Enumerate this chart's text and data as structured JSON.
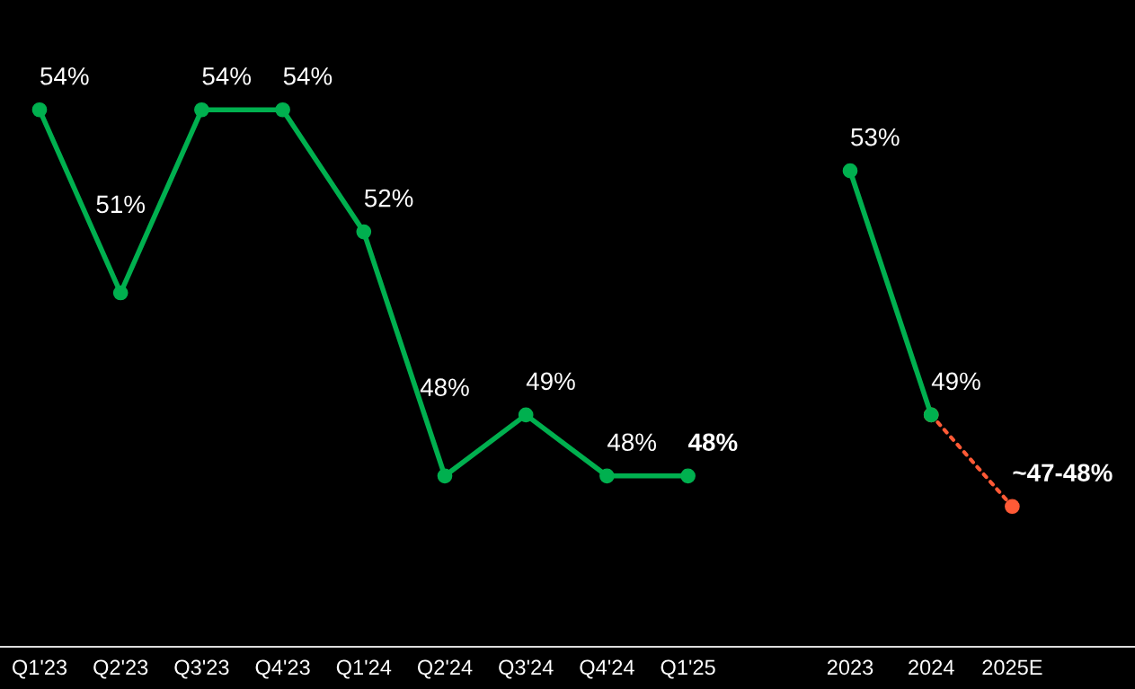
{
  "chart_data": {
    "type": "line",
    "ylim": [
      45.2,
      55.8
    ],
    "categories": [
      "Q1'23",
      "Q2'23",
      "Q3'23",
      "Q4'23",
      "Q1'24",
      "Q2'24",
      "Q3'24",
      "Q4'24",
      "Q1'25",
      null,
      "2023",
      "2024",
      "2025E"
    ],
    "series": [
      {
        "color": "#00b04f",
        "marker": "circle",
        "line_style": "solid",
        "values": [
          54,
          51,
          54,
          54,
          52,
          48,
          49,
          48,
          48,
          null,
          null,
          null,
          null
        ],
        "value_labels": [
          "54%",
          "51%",
          "54%",
          "54%",
          "52%",
          "48%",
          "49%",
          "48%",
          "48%",
          null,
          null,
          null,
          null
        ]
      },
      {
        "color": "#ff5a36",
        "marker": "circle",
        "line_style": "dotted",
        "values": [
          null,
          null,
          null,
          null,
          null,
          null,
          null,
          null,
          null,
          null,
          null,
          49,
          47.5
        ],
        "value_labels": [
          null,
          null,
          null,
          null,
          null,
          null,
          null,
          null,
          null,
          null,
          null,
          null,
          "~47-48%"
        ]
      },
      {
        "color": "#00b04f",
        "marker": "circle",
        "line_style": "solid",
        "values": [
          null,
          null,
          null,
          null,
          null,
          null,
          null,
          null,
          null,
          null,
          53,
          49,
          null
        ],
        "value_labels": [
          null,
          null,
          null,
          null,
          null,
          null,
          null,
          null,
          null,
          null,
          "53%",
          "49%",
          null
        ]
      }
    ],
    "grid": false,
    "legend": false
  }
}
